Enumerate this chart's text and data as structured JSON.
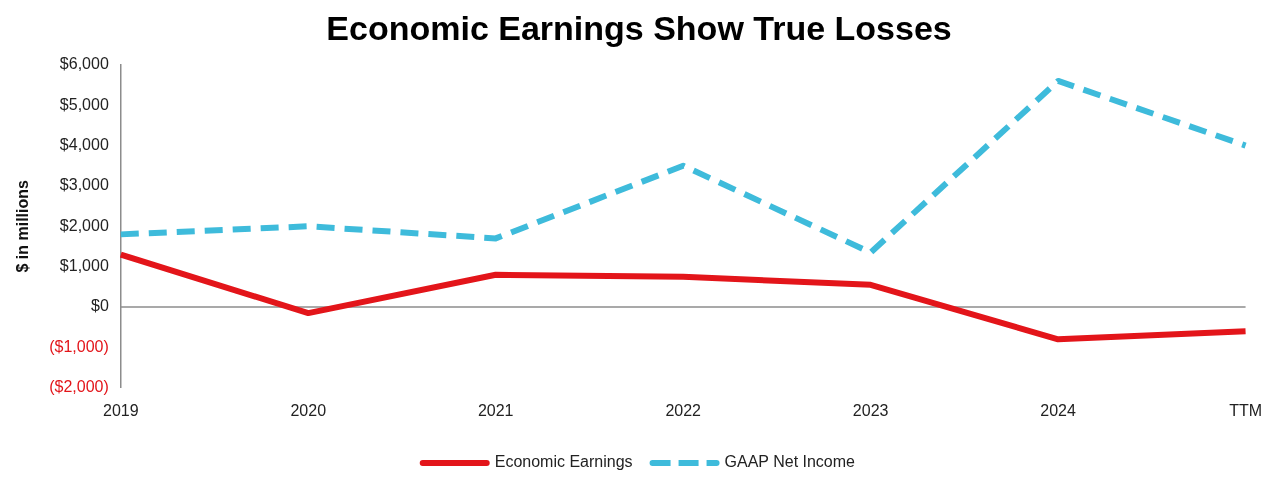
{
  "chart_data": {
    "type": "line",
    "title": "Economic Earnings Show True Losses",
    "ylabel": "$ in millions",
    "categories": [
      "2019",
      "2020",
      "2021",
      "2022",
      "2023",
      "2024",
      "TTM"
    ],
    "series": [
      {
        "name": "Economic Earnings",
        "color": "#e3151a",
        "line_style": "solid",
        "values": [
          1300,
          -150,
          800,
          750,
          550,
          -800,
          -600
        ]
      },
      {
        "name": "GAAP Net Income",
        "color": "#3ebbdb",
        "line_style": "dashed",
        "values": [
          1800,
          2000,
          1700,
          3500,
          1350,
          5600,
          4000
        ]
      }
    ],
    "ylim": [
      -2000,
      6000
    ],
    "yticks": [
      {
        "value": -2000,
        "label": "($2,000)"
      },
      {
        "value": -1000,
        "label": "($1,000)"
      },
      {
        "value": 0,
        "label": "$0"
      },
      {
        "value": 1000,
        "label": "$1,000"
      },
      {
        "value": 2000,
        "label": "$2,000"
      },
      {
        "value": 3000,
        "label": "$3,000"
      },
      {
        "value": 4000,
        "label": "$4,000"
      },
      {
        "value": 5000,
        "label": "$5,000"
      },
      {
        "value": 6000,
        "label": "$6,000"
      }
    ],
    "ref_lines": [
      {
        "axis": "y",
        "value": 0,
        "color": "#8c8c8c"
      }
    ],
    "grid": false,
    "legend": "bottom",
    "marker": "none"
  }
}
